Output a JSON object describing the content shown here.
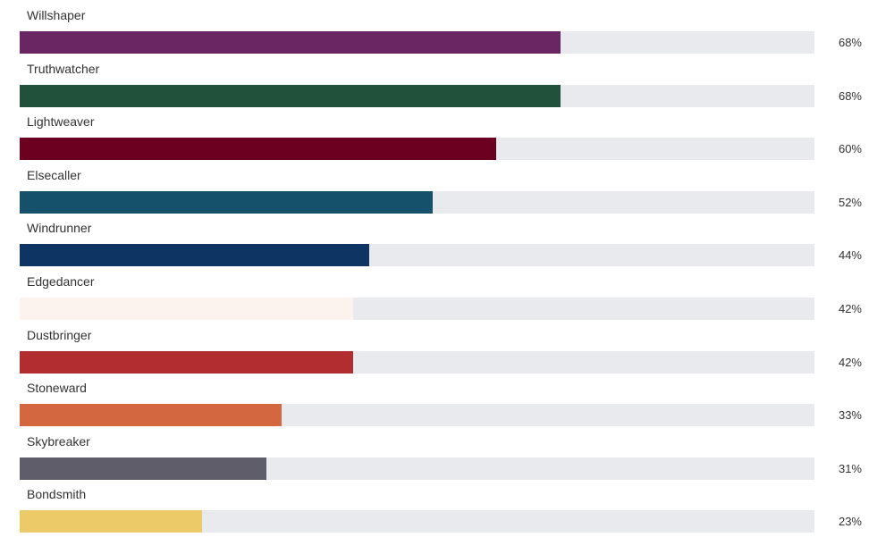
{
  "chart_data": {
    "type": "bar",
    "orientation": "horizontal",
    "xlim": [
      0,
      100
    ],
    "unit": "%",
    "grid": false,
    "legend": "none",
    "categories": [
      "Willshaper",
      "Truthwatcher",
      "Lightweaver",
      "Elsecaller",
      "Windrunner",
      "Edgedancer",
      "Dustbringer",
      "Stoneward",
      "Skybreaker",
      "Bondsmith"
    ],
    "values": [
      68,
      68,
      60,
      52,
      44,
      42,
      42,
      33,
      31,
      23
    ],
    "value_labels": [
      "68%",
      "68%",
      "60%",
      "52%",
      "44%",
      "42%",
      "42%",
      "33%",
      "31%",
      "23%"
    ],
    "colors": [
      "#692662",
      "#21503b",
      "#6b0020",
      "#15516a",
      "#0e3463",
      "#fcf3ef",
      "#b22d2f",
      "#d36840",
      "#5f5d69",
      "#ecca68"
    ]
  }
}
